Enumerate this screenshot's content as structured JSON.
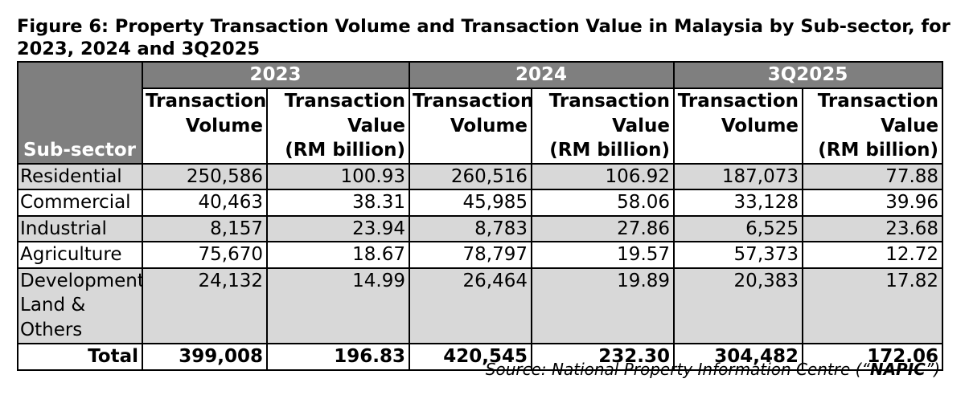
{
  "figure": {
    "title": "Figure 6: Property Transaction Volume and Transaction Value in Malaysia by Sub-sector, for 2023, 2024 and 3Q2025"
  },
  "table": {
    "corner_label": "Sub-sector",
    "years": [
      "2023",
      "2024",
      "3Q2025"
    ],
    "col_volume_line1": "Transaction",
    "col_volume_line2": "Volume",
    "col_value_line1": "Transaction",
    "col_value_line2": "Value",
    "col_value_line3": "(RM billion)",
    "rows": [
      {
        "label": "Residential",
        "cells": [
          "250,586",
          "100.93",
          "260,516",
          "106.92",
          "187,073",
          "77.88"
        ]
      },
      {
        "label": "Commercial",
        "cells": [
          "40,463",
          "38.31",
          "45,985",
          "58.06",
          "33,128",
          "39.96"
        ]
      },
      {
        "label": "Industrial",
        "cells": [
          "8,157",
          "23.94",
          "8,783",
          "27.86",
          "6,525",
          "23.68"
        ]
      },
      {
        "label": "Agriculture",
        "cells": [
          "75,670",
          "18.67",
          "78,797",
          "19.57",
          "57,373",
          "12.72"
        ]
      },
      {
        "label": "Development Land & Others",
        "cells": [
          "24,132",
          "14.99",
          "26,464",
          "19.89",
          "20,383",
          "17.82"
        ]
      }
    ],
    "total": {
      "label": "Total",
      "cells": [
        "399,008",
        "196.83",
        "420,545",
        "232.30",
        "304,482",
        "172.06"
      ]
    }
  },
  "source": {
    "prefix": "Source: National Property Information Centre (“",
    "bold": "NAPIC",
    "suffix": "”)"
  }
}
